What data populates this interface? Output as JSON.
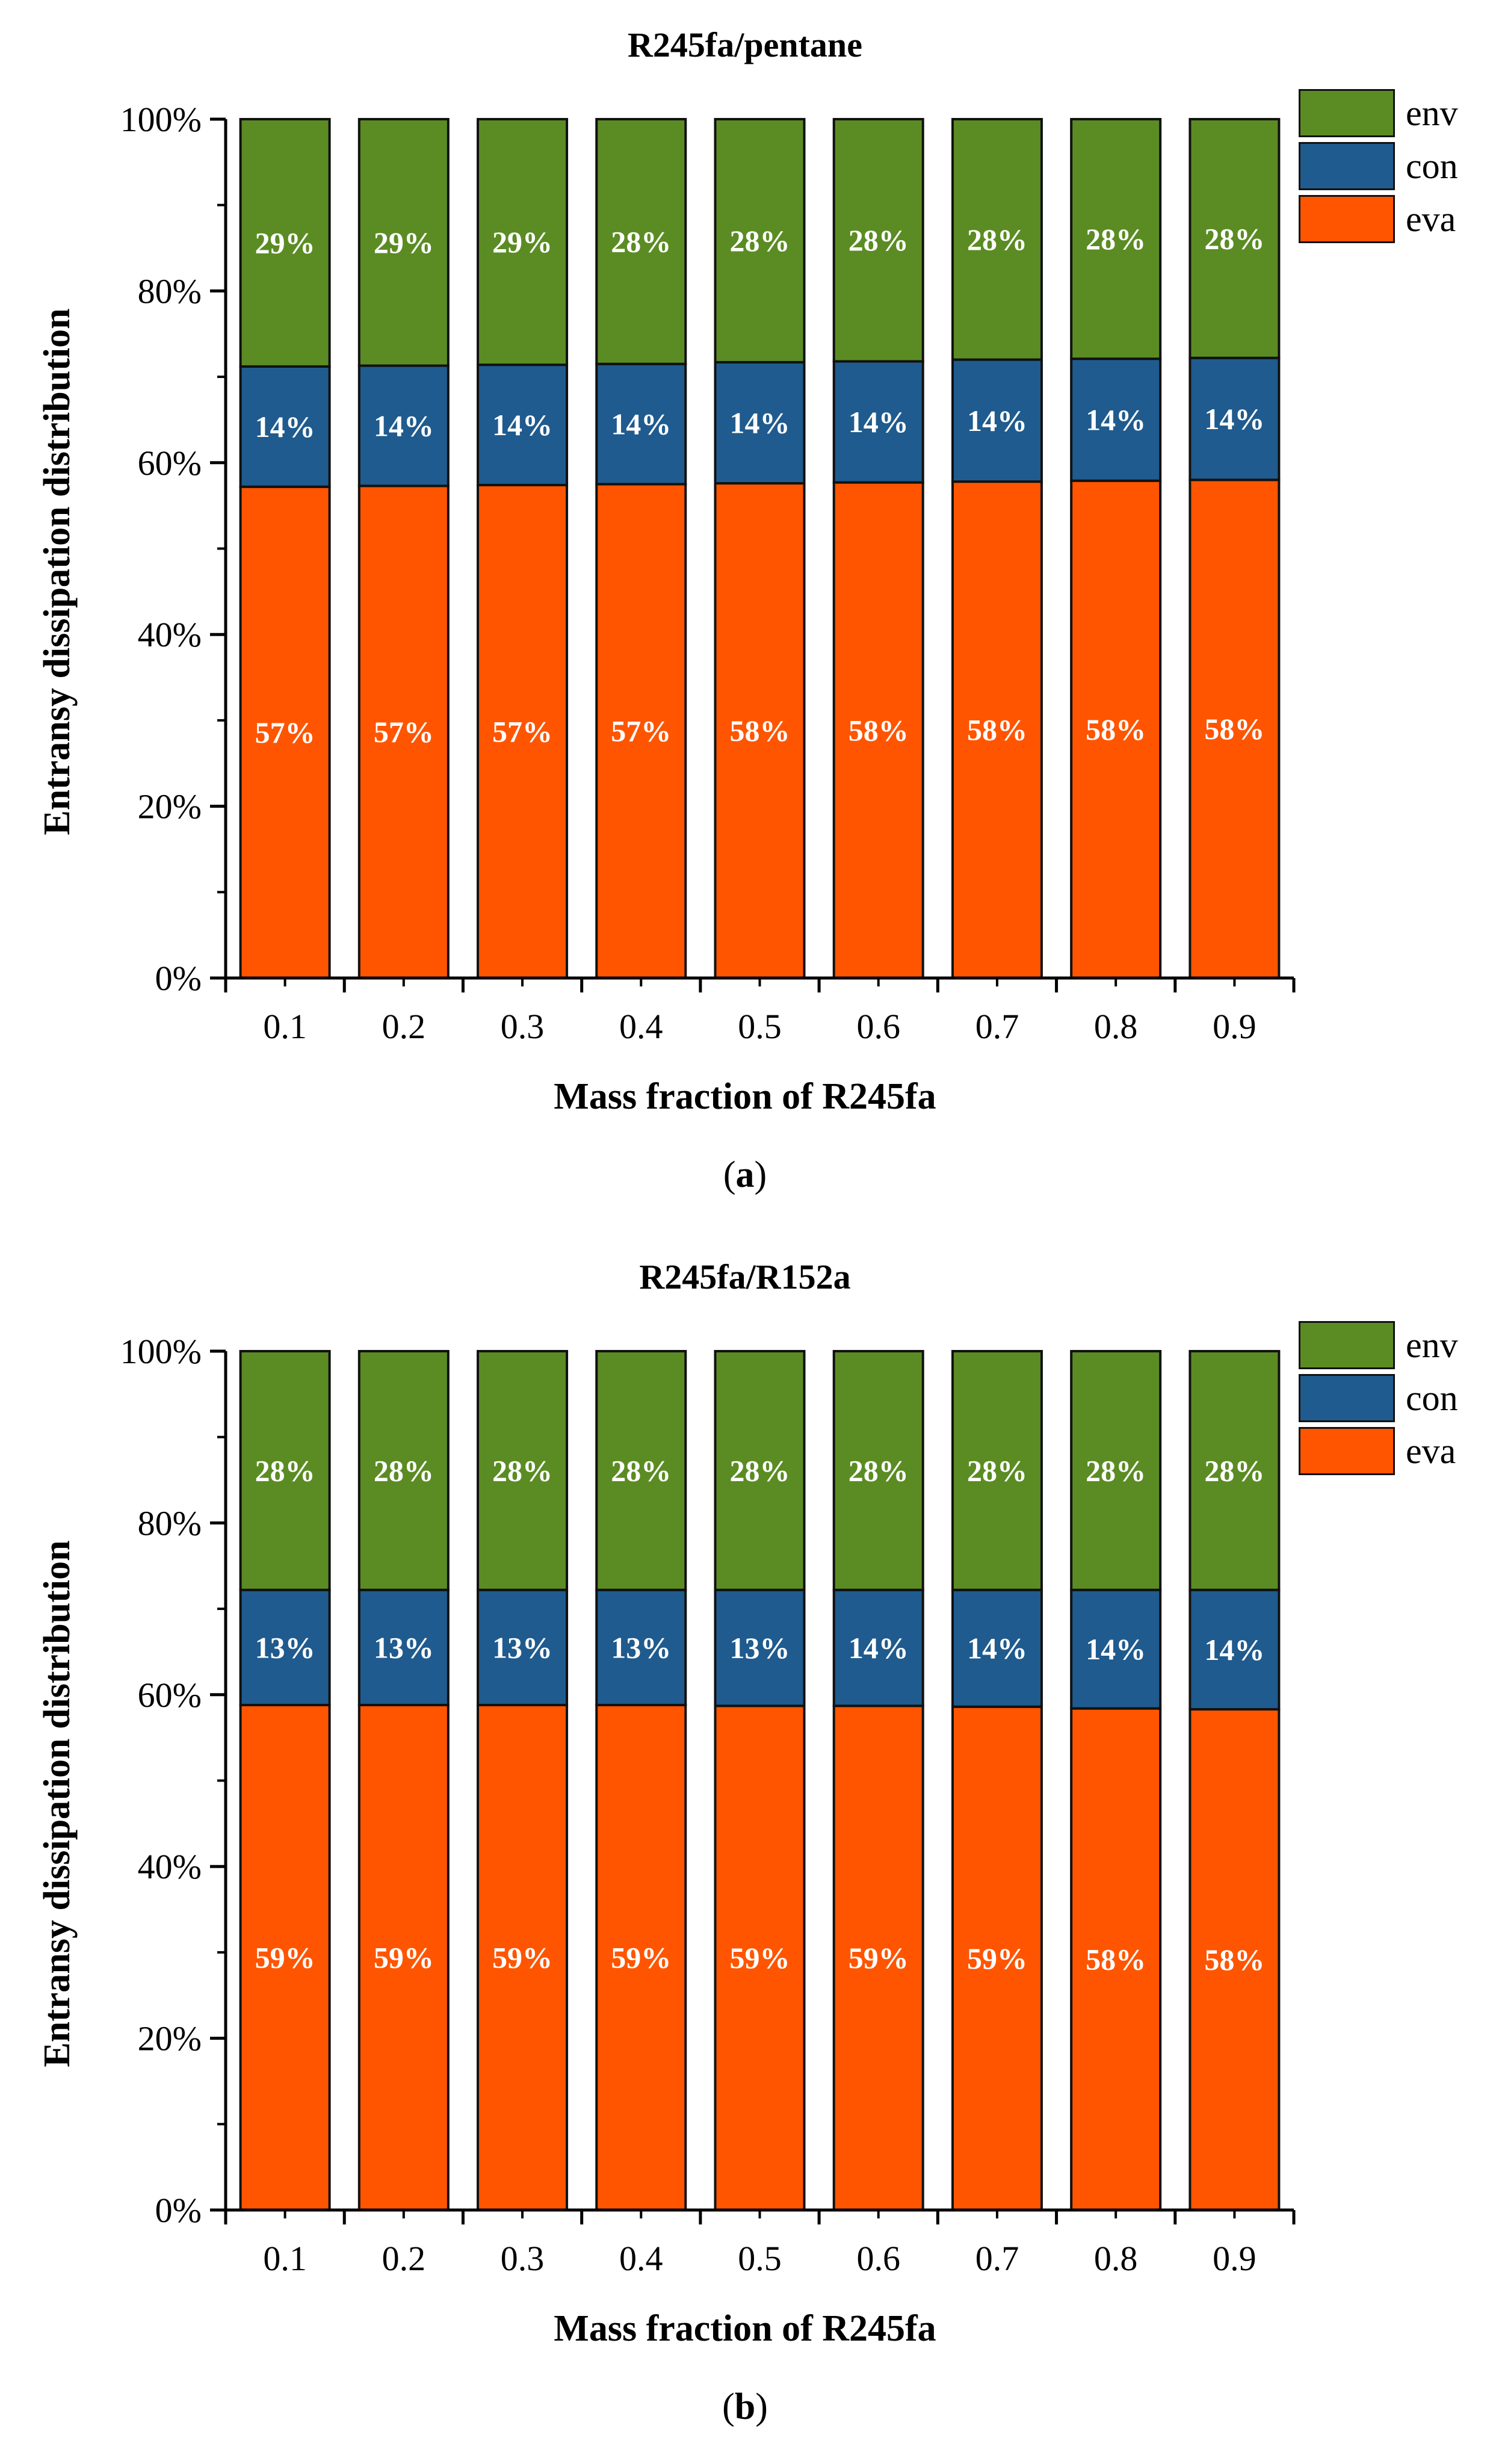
{
  "chart_data": [
    {
      "type": "bar",
      "stacked": true,
      "title": "R245fa/pentane",
      "xlabel": "Mass fraction of R245fa",
      "ylabel": "Entransy dissipation distribution",
      "caption_letter": "a",
      "ylim": [
        0,
        100
      ],
      "y_ticks": [
        "0%",
        "20%",
        "40%",
        "60%",
        "80%",
        "100%"
      ],
      "categories": [
        "0.1",
        "0.2",
        "0.3",
        "0.4",
        "0.5",
        "0.6",
        "0.7",
        "0.8",
        "0.9"
      ],
      "legend_position": "top-right",
      "series": [
        {
          "name": "eva",
          "color": "#ff5500",
          "values": [
            57.2,
            57.3,
            57.4,
            57.5,
            57.6,
            57.7,
            57.8,
            57.9,
            58.0
          ],
          "labels": [
            "57%",
            "57%",
            "57%",
            "57%",
            "58%",
            "58%",
            "58%",
            "58%",
            "58%"
          ]
        },
        {
          "name": "con",
          "color": "#1f5b8e",
          "values": [
            14.0,
            14.0,
            14.0,
            14.0,
            14.1,
            14.1,
            14.2,
            14.2,
            14.2
          ],
          "labels": [
            "14%",
            "14%",
            "14%",
            "14%",
            "14%",
            "14%",
            "14%",
            "14%",
            "14%"
          ]
        },
        {
          "name": "env",
          "color": "#5b8c23",
          "values": [
            28.8,
            28.7,
            28.6,
            28.5,
            28.3,
            28.2,
            28.0,
            27.9,
            27.8
          ],
          "labels": [
            "29%",
            "29%",
            "29%",
            "28%",
            "28%",
            "28%",
            "28%",
            "28%",
            "28%"
          ]
        }
      ]
    },
    {
      "type": "bar",
      "stacked": true,
      "title": "R245fa/R152a",
      "xlabel": "Mass fraction of R245fa",
      "ylabel": "Entransy dissipation distribution",
      "caption_letter": "b",
      "ylim": [
        0,
        100
      ],
      "y_ticks": [
        "0%",
        "20%",
        "40%",
        "60%",
        "80%",
        "100%"
      ],
      "categories": [
        "0.1",
        "0.2",
        "0.3",
        "0.4",
        "0.5",
        "0.6",
        "0.7",
        "0.8",
        "0.9"
      ],
      "legend_position": "top-right",
      "series": [
        {
          "name": "eva",
          "color": "#ff5500",
          "values": [
            58.8,
            58.8,
            58.8,
            58.8,
            58.7,
            58.7,
            58.6,
            58.4,
            58.3
          ],
          "labels": [
            "59%",
            "59%",
            "59%",
            "59%",
            "59%",
            "59%",
            "59%",
            "58%",
            "58%"
          ]
        },
        {
          "name": "con",
          "color": "#1f5b8e",
          "values": [
            13.4,
            13.4,
            13.4,
            13.4,
            13.5,
            13.5,
            13.6,
            13.8,
            13.9
          ],
          "labels": [
            "13%",
            "13%",
            "13%",
            "13%",
            "13%",
            "14%",
            "14%",
            "14%",
            "14%"
          ]
        },
        {
          "name": "env",
          "color": "#5b8c23",
          "values": [
            27.8,
            27.8,
            27.8,
            27.8,
            27.8,
            27.8,
            27.8,
            27.8,
            27.8
          ],
          "labels": [
            "28%",
            "28%",
            "28%",
            "28%",
            "28%",
            "28%",
            "28%",
            "28%",
            "28%"
          ]
        }
      ]
    }
  ]
}
